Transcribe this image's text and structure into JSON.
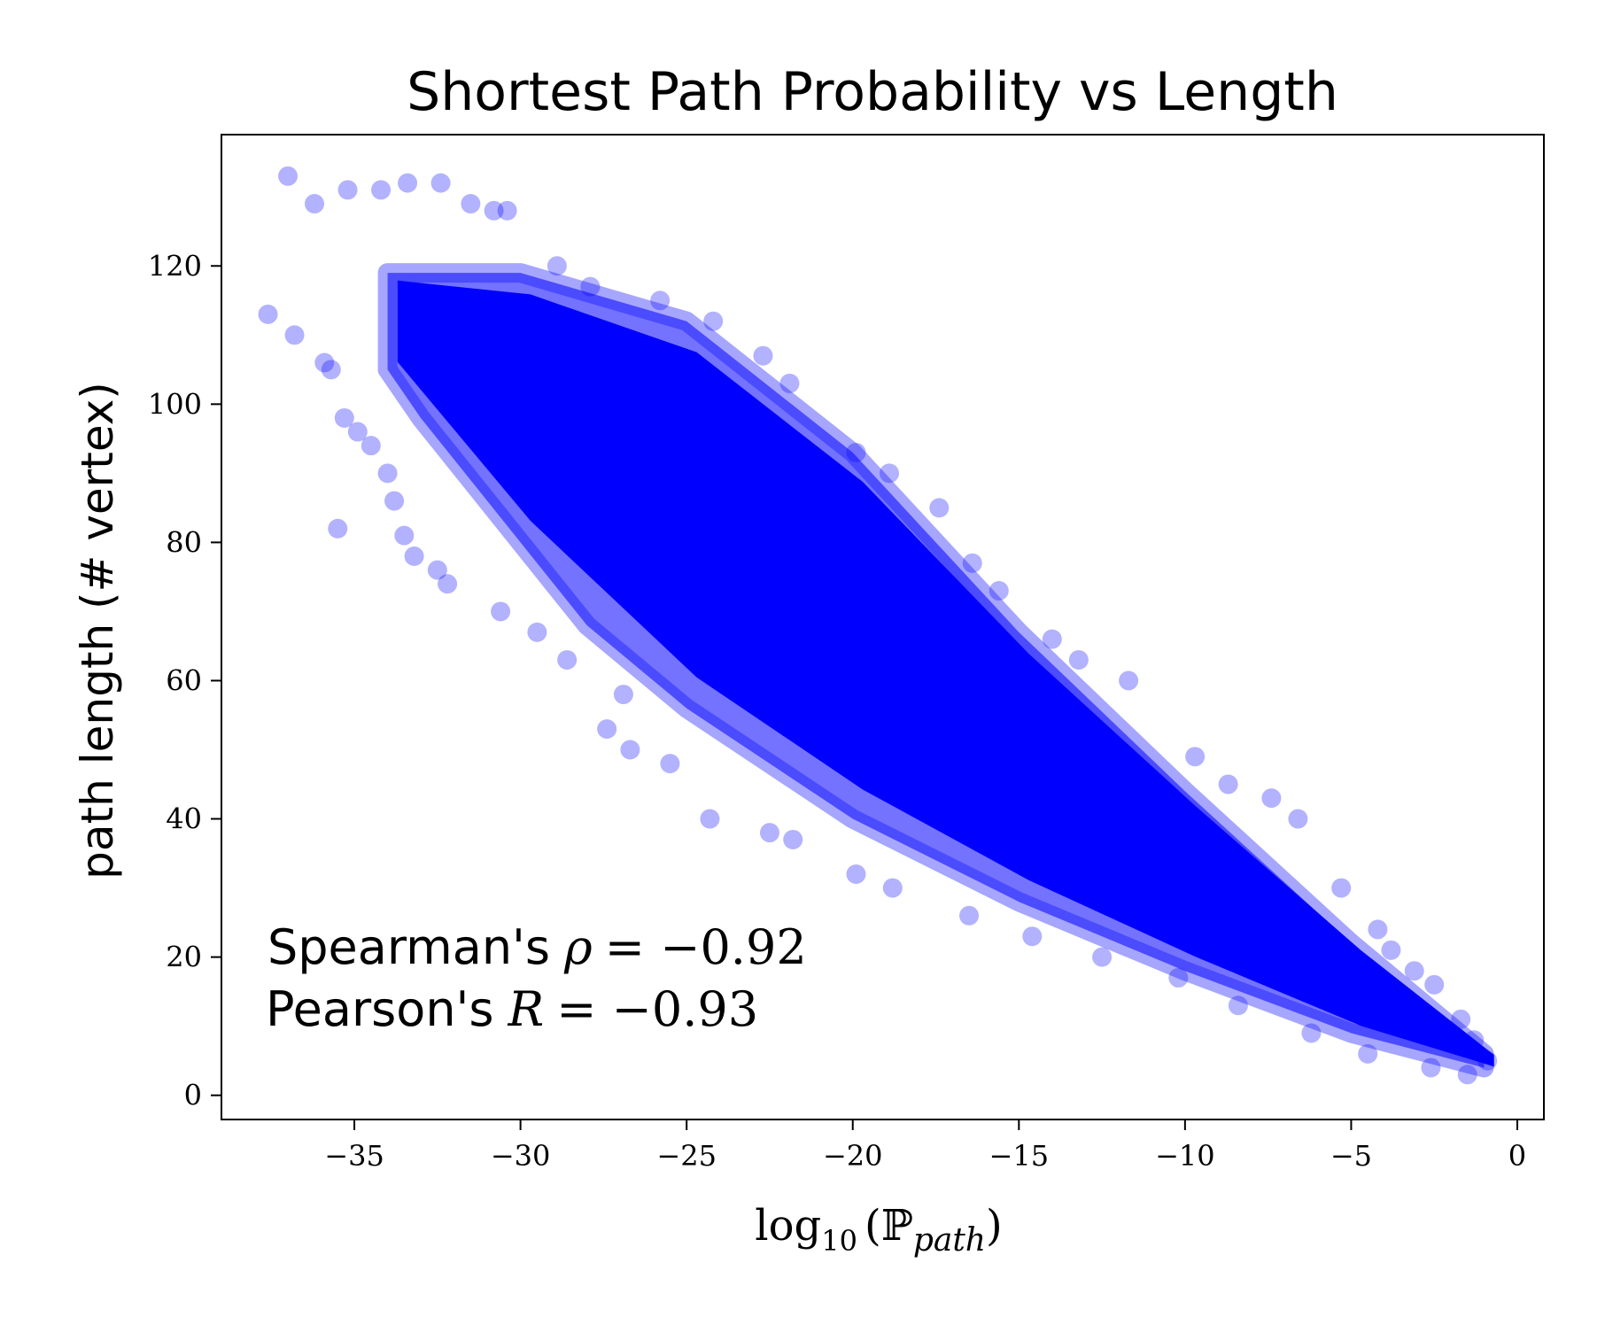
{
  "chart_data": {
    "type": "scatter",
    "title": "Shortest Path Probability vs Length",
    "xlabel": {
      "func": "log",
      "func_sub": "10",
      "symbol": "ℙ",
      "symbol_sub": "path"
    },
    "ylabel": "path length (# vertex)",
    "xlim": [
      -39,
      0.8
    ],
    "ylim": [
      -3.5,
      139
    ],
    "xticks": [
      -35,
      -30,
      -25,
      -20,
      -15,
      -10,
      -5,
      0
    ],
    "yticks": [
      0,
      20,
      40,
      60,
      80,
      100,
      120
    ],
    "xtick_labels": [
      "−35",
      "−30",
      "−25",
      "−20",
      "−15",
      "−10",
      "−5",
      "0"
    ],
    "ytick_labels": [
      "0",
      "20",
      "40",
      "60",
      "80",
      "100",
      "120"
    ],
    "grid": false,
    "legend": "none",
    "marker_color": "#0000ff",
    "marker_alpha": 0.3,
    "annotations": {
      "spearman_prefix": "Spearman's",
      "spearman_symbol": "ρ",
      "spearman_value": "= −0.92",
      "pearson_prefix": "Pearson's",
      "pearson_symbol": "R",
      "pearson_value": "= −0.93"
    },
    "density_band": {
      "description_upper_edge": [
        [
          -34,
          119
        ],
        [
          -30,
          119
        ],
        [
          -25,
          112
        ],
        [
          -20,
          93
        ],
        [
          -15,
          67
        ],
        [
          -10,
          44
        ],
        [
          -5,
          22
        ],
        [
          -1,
          6
        ]
      ],
      "description_lower_edge": [
        [
          -34,
          105
        ],
        [
          -33,
          98
        ],
        [
          -30,
          80
        ],
        [
          -28,
          68
        ],
        [
          -25,
          56
        ],
        [
          -20,
          40
        ],
        [
          -15,
          28
        ],
        [
          -10,
          18
        ],
        [
          -5,
          9
        ],
        [
          -1,
          4
        ]
      ]
    },
    "series": [
      {
        "points": [
          [
            -37,
            133
          ],
          [
            -36.2,
            129
          ],
          [
            -35.2,
            131
          ],
          [
            -34.2,
            131
          ],
          [
            -33.4,
            132
          ],
          [
            -32.4,
            132
          ],
          [
            -31.5,
            129
          ],
          [
            -30.8,
            128
          ],
          [
            -30.4,
            128
          ],
          [
            -28.9,
            120
          ],
          [
            -27.9,
            117
          ],
          [
            -25.8,
            115
          ],
          [
            -24.2,
            112
          ],
          [
            -22.7,
            107
          ],
          [
            -21.9,
            103
          ],
          [
            -19.9,
            93
          ],
          [
            -18.9,
            90
          ],
          [
            -17.4,
            85
          ],
          [
            -16.4,
            77
          ],
          [
            -15.6,
            73
          ],
          [
            -14,
            66
          ],
          [
            -13.2,
            63
          ],
          [
            -11.7,
            60
          ],
          [
            -9.7,
            49
          ],
          [
            -8.7,
            45
          ],
          [
            -7.4,
            43
          ],
          [
            -6.6,
            40
          ],
          [
            -5.3,
            30
          ],
          [
            -4.2,
            24
          ],
          [
            -3.8,
            21
          ],
          [
            -3.1,
            18
          ],
          [
            -2.5,
            16
          ],
          [
            -1.7,
            11
          ],
          [
            -1.3,
            8
          ],
          [
            -0.9,
            5
          ],
          [
            -37.6,
            113
          ],
          [
            -36.8,
            110
          ],
          [
            -35.9,
            106
          ],
          [
            -35.7,
            105
          ],
          [
            -35.3,
            98
          ],
          [
            -34.9,
            96
          ],
          [
            -34.5,
            94
          ],
          [
            -34,
            90
          ],
          [
            -33.8,
            86
          ],
          [
            -35.5,
            82
          ],
          [
            -33.5,
            81
          ],
          [
            -33.2,
            78
          ],
          [
            -32.5,
            76
          ],
          [
            -32.2,
            74
          ],
          [
            -30.6,
            70
          ],
          [
            -29.5,
            67
          ],
          [
            -28.6,
            63
          ],
          [
            -26.9,
            58
          ],
          [
            -27.4,
            53
          ],
          [
            -26.7,
            50
          ],
          [
            -25.5,
            48
          ],
          [
            -24.3,
            40
          ],
          [
            -22.5,
            38
          ],
          [
            -21.8,
            37
          ],
          [
            -19.9,
            32
          ],
          [
            -18.8,
            30
          ],
          [
            -16.5,
            26
          ],
          [
            -14.6,
            23
          ],
          [
            -12.5,
            20
          ],
          [
            -10.2,
            17
          ],
          [
            -8.4,
            13
          ],
          [
            -6.2,
            9
          ],
          [
            -4.5,
            6
          ],
          [
            -2.6,
            4
          ],
          [
            -1.5,
            3
          ]
        ]
      }
    ]
  }
}
